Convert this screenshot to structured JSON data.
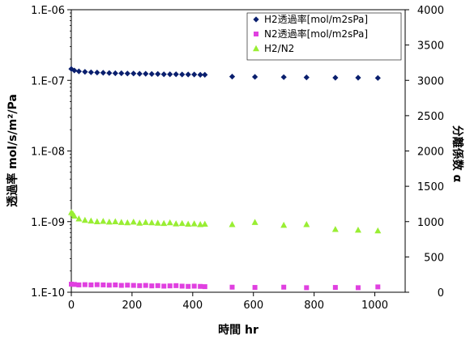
{
  "chart_data": {
    "type": "scatter",
    "xlabel": "時間 hr",
    "ylabel_left": "透過率 mol/s/m²/Pa",
    "ylabel_right": "分離係数 α",
    "xlim": [
      0,
      1100
    ],
    "x_ticks": [
      "0",
      "200",
      "400",
      "600",
      "800",
      "1000"
    ],
    "x_tick_values": [
      0,
      200,
      400,
      600,
      800,
      1000
    ],
    "ylim_left": [
      1e-10,
      1e-06
    ],
    "y_left_scale": "log",
    "y_left_ticks": [
      "1.E-06",
      "1.E-07",
      "1.E-08",
      "1.E-09",
      "1.E-10"
    ],
    "y_left_tick_values": [
      1e-06,
      1e-07,
      1e-08,
      1e-09,
      1e-10
    ],
    "ylim_right": [
      0,
      4000
    ],
    "y_right_ticks": [
      "4000",
      "3500",
      "3000",
      "2500",
      "2000",
      "1500",
      "1000",
      "500",
      "0"
    ],
    "y_right_tick_values": [
      4000,
      3500,
      3000,
      2500,
      2000,
      1500,
      1000,
      500,
      0
    ],
    "grid": false,
    "legend_position": "top-right",
    "legend": [
      {
        "label": "H2透過率[mol/m2sPa]",
        "marker": "diamond",
        "color": "#0a1f6e"
      },
      {
        "label": "N2透過率[mol/m2sPa]",
        "marker": "square",
        "color": "#e040e0"
      },
      {
        "label": "H2/N2",
        "marker": "triangle",
        "color": "#99ee33"
      }
    ],
    "series": [
      {
        "name": "H2透過率[mol/m2sPa]",
        "axis": "left",
        "marker": "diamond",
        "color": "#0a1f6e",
        "x": [
          0,
          10,
          25,
          45,
          65,
          85,
          105,
          125,
          145,
          165,
          185,
          205,
          225,
          245,
          265,
          285,
          305,
          325,
          345,
          365,
          385,
          405,
          425,
          440,
          530,
          605,
          700,
          775,
          870,
          945,
          1010
        ],
        "y": [
          1.45e-07,
          1.38e-07,
          1.34e-07,
          1.32e-07,
          1.3e-07,
          1.29e-07,
          1.28e-07,
          1.27e-07,
          1.26e-07,
          1.26e-07,
          1.25e-07,
          1.25e-07,
          1.24e-07,
          1.24e-07,
          1.23e-07,
          1.23e-07,
          1.22e-07,
          1.22e-07,
          1.22e-07,
          1.21e-07,
          1.21e-07,
          1.21e-07,
          1.2e-07,
          1.2e-07,
          1.13e-07,
          1.12e-07,
          1.11e-07,
          1.1e-07,
          1.09e-07,
          1.09e-07,
          1.08e-07
        ]
      },
      {
        "name": "N2透過率[mol/m2sPa]",
        "axis": "left",
        "marker": "square",
        "color": "#e040e0",
        "x": [
          0,
          10,
          25,
          45,
          65,
          85,
          105,
          125,
          145,
          165,
          185,
          205,
          225,
          245,
          265,
          285,
          305,
          325,
          345,
          365,
          385,
          405,
          425,
          440,
          530,
          605,
          700,
          775,
          870,
          945,
          1010
        ],
        "y": [
          1.3e-10,
          1.29e-10,
          1.27e-10,
          1.28e-10,
          1.27e-10,
          1.28e-10,
          1.27e-10,
          1.26e-10,
          1.27e-10,
          1.25e-10,
          1.26e-10,
          1.25e-10,
          1.24e-10,
          1.25e-10,
          1.23e-10,
          1.24e-10,
          1.22e-10,
          1.23e-10,
          1.24e-10,
          1.22e-10,
          1.21e-10,
          1.22e-10,
          1.21e-10,
          1.2e-10,
          1.18e-10,
          1.17e-10,
          1.18e-10,
          1.16e-10,
          1.17e-10,
          1.16e-10,
          1.19e-10
        ]
      },
      {
        "name": "H2/N2",
        "axis": "right",
        "marker": "triangle",
        "color": "#99ee33",
        "x": [
          0,
          5,
          10,
          25,
          45,
          65,
          85,
          105,
          125,
          145,
          165,
          185,
          205,
          225,
          245,
          265,
          285,
          305,
          325,
          345,
          365,
          385,
          405,
          425,
          440,
          530,
          605,
          700,
          775,
          870,
          945,
          1010
        ],
        "y": [
          1130,
          1110,
          1080,
          1040,
          1020,
          1010,
          1000,
          1005,
          995,
          1000,
          990,
          985,
          995,
          980,
          990,
          985,
          980,
          975,
          985,
          970,
          975,
          965,
          970,
          960,
          965,
          960,
          990,
          950,
          960,
          890,
          880,
          870
        ]
      }
    ]
  }
}
